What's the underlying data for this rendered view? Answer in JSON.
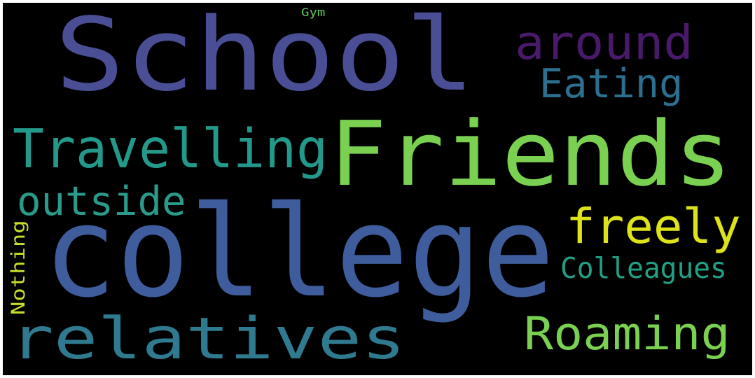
{
  "words": [
    {
      "text": "School",
      "color": "#4a4f95"
    },
    {
      "text": "college",
      "color": "#3f5d9c"
    },
    {
      "text": "Friends",
      "color": "#7ad151"
    },
    {
      "text": "relatives",
      "color": "#2f7a8e"
    },
    {
      "text": "Travelling",
      "color": "#23998b"
    },
    {
      "text": "around",
      "color": "#4a1a6a"
    },
    {
      "text": "Eating",
      "color": "#2d6f8e"
    },
    {
      "text": "outside",
      "color": "#2a9a8a"
    },
    {
      "text": "freely",
      "color": "#dde318"
    },
    {
      "text": "Roaming",
      "color": "#7ad151"
    },
    {
      "text": "Colleagues",
      "color": "#20a186"
    },
    {
      "text": "Nothing",
      "color": "#c8de2a"
    },
    {
      "text": "Gym",
      "color": "#5ec962"
    }
  ]
}
